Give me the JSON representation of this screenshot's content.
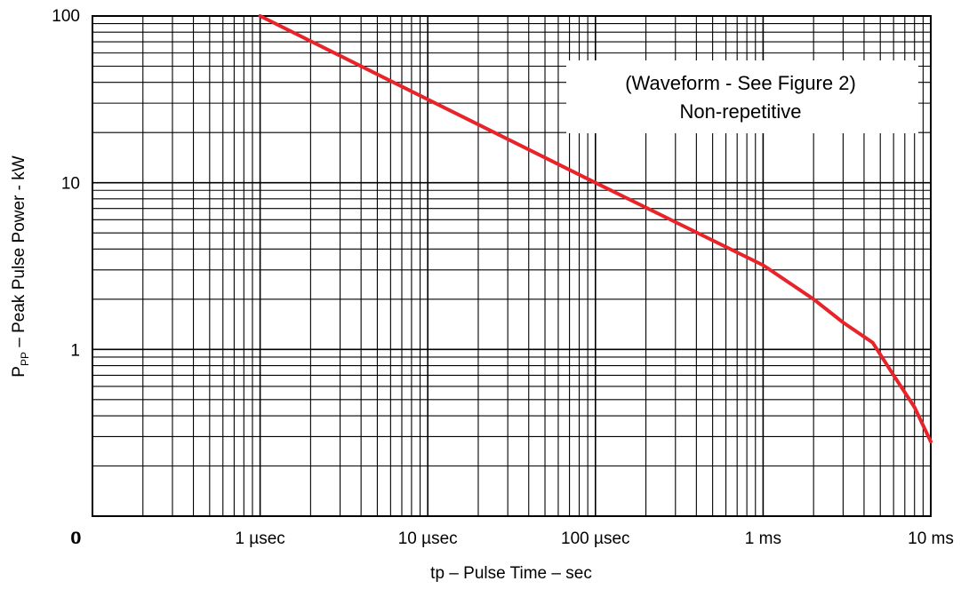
{
  "chart_data": {
    "type": "line",
    "xlabel": "tp – Pulse Time – sec",
    "ylabel_main": "P",
    "ylabel_sub": "PP",
    "ylabel_rest": " – Peak Pulse Power - kW",
    "x_scale": "log",
    "y_scale": "log",
    "xlim": [
      1e-07,
      0.01
    ],
    "ylim": [
      0.1,
      100
    ],
    "grid": true,
    "x_ticks": [
      {
        "value": 1e-07,
        "label": "0"
      },
      {
        "value": 1e-06,
        "label": "1 µsec"
      },
      {
        "value": 1e-05,
        "label": "10 µsec"
      },
      {
        "value": 0.0001,
        "label": "100 µsec"
      },
      {
        "value": 0.001,
        "label": "1 ms"
      },
      {
        "value": 0.01,
        "label": "10 ms"
      }
    ],
    "y_ticks": [
      {
        "value": 0.1,
        "label": "0"
      },
      {
        "value": 1,
        "label": "1"
      },
      {
        "value": 10,
        "label": "10"
      },
      {
        "value": 100,
        "label": "100"
      }
    ],
    "series": [
      {
        "color": "#e8242a",
        "points": [
          [
            1e-06,
            100
          ],
          [
            1e-05,
            31.6
          ],
          [
            0.0001,
            10
          ],
          [
            0.001,
            3.2
          ],
          [
            0.002,
            2.0
          ],
          [
            0.003,
            1.45
          ],
          [
            0.0045,
            1.1
          ],
          [
            0.006,
            0.7
          ],
          [
            0.008,
            0.45
          ],
          [
            0.01,
            0.28
          ]
        ]
      }
    ],
    "annotation": {
      "line1": "(Waveform - See Figure 2)",
      "line2": "Non-repetitive"
    }
  }
}
